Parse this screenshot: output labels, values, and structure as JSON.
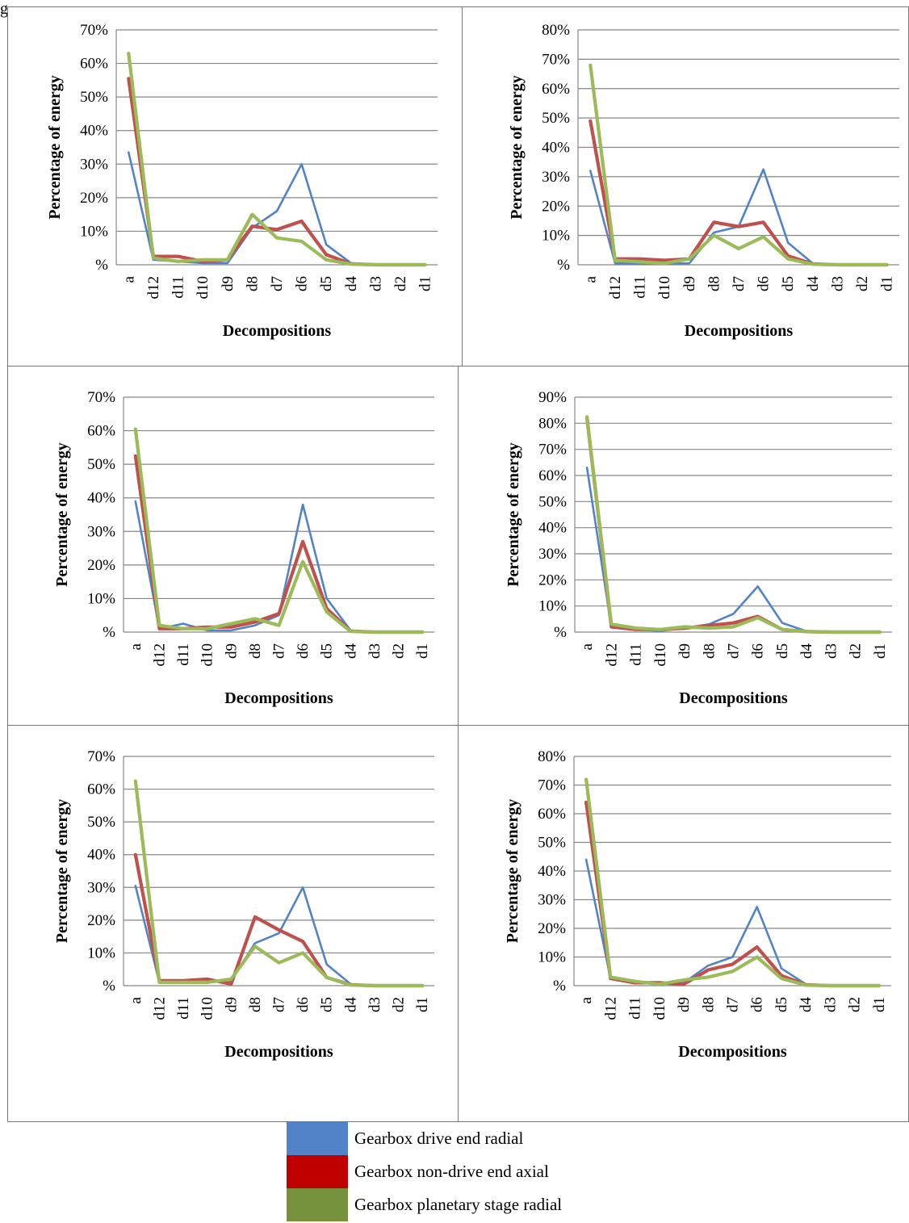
{
  "page": {
    "label": "g"
  },
  "legend": {
    "items": [
      {
        "label": "Gearbox drive end radial",
        "color": "#5283c8"
      },
      {
        "label": "Gearbox non-drive end axial",
        "color": "#c00000"
      },
      {
        "label": "Gearbox planetary stage radial",
        "color": "#76923c"
      }
    ]
  },
  "chart_data": [
    {
      "type": "line",
      "xlabel": "Decompositions",
      "ylabel": "Percentage of energy",
      "categories": [
        "a",
        "d12",
        "d11",
        "d10",
        "d9",
        "d8",
        "d7",
        "d6",
        "d5",
        "d4",
        "d3",
        "d2",
        "d1"
      ],
      "ylim": [
        0,
        70
      ],
      "yticks": [
        "%",
        "10%",
        "20%",
        "30%",
        "40%",
        "50%",
        "60%",
        "70%"
      ],
      "series": [
        {
          "name": "Gearbox drive end radial",
          "color": "#5283c8",
          "values": [
            33.5,
            1.5,
            1.0,
            0.5,
            0.5,
            11.0,
            16.0,
            30.0,
            6.0,
            0.5,
            0,
            0,
            0
          ]
        },
        {
          "name": "Gearbox non-drive end axial",
          "color": "#c0504d",
          "values": [
            55.5,
            2.5,
            2.5,
            1.0,
            1.5,
            11.5,
            10.5,
            13.0,
            3.0,
            0.3,
            0,
            0,
            0
          ]
        },
        {
          "name": "Gearbox planetary stage radial",
          "color": "#9bbb59",
          "values": [
            63.0,
            2.0,
            1.0,
            1.5,
            1.5,
            15.0,
            8.0,
            7.0,
            1.5,
            0.2,
            0,
            0,
            0
          ]
        }
      ]
    },
    {
      "type": "line",
      "xlabel": "Decompositions",
      "ylabel": "Percentage of energy",
      "categories": [
        "a",
        "d12",
        "d11",
        "d10",
        "d9",
        "d8",
        "d7",
        "d6",
        "d5",
        "d4",
        "d3",
        "d2",
        "d1"
      ],
      "ylim": [
        0,
        80
      ],
      "yticks": [
        "%",
        "10%",
        "20%",
        "30%",
        "40%",
        "50%",
        "60%",
        "70%",
        "80%"
      ],
      "series": [
        {
          "name": "Gearbox drive end radial",
          "color": "#5283c8",
          "values": [
            32.0,
            0.5,
            0.5,
            0.5,
            0.5,
            11.0,
            13.0,
            32.5,
            7.5,
            0.5,
            0,
            0,
            0
          ]
        },
        {
          "name": "Gearbox non-drive end axial",
          "color": "#c0504d",
          "values": [
            49.0,
            2.0,
            2.0,
            1.5,
            2.0,
            14.5,
            13.0,
            14.5,
            3.0,
            0.3,
            0,
            0,
            0
          ]
        },
        {
          "name": "Gearbox planetary stage radial",
          "color": "#9bbb59",
          "values": [
            68.0,
            1.5,
            1.0,
            0.5,
            2.0,
            10.0,
            5.5,
            9.5,
            2.0,
            0.2,
            0,
            0,
            0
          ]
        }
      ]
    },
    {
      "type": "line",
      "xlabel": "Decompositions",
      "ylabel": "Percentage of energy",
      "categories": [
        "a",
        "d12",
        "d11",
        "d10",
        "d9",
        "d8",
        "d7",
        "d6",
        "d5",
        "d4",
        "d3",
        "d2",
        "d1"
      ],
      "ylim": [
        0,
        70
      ],
      "yticks": [
        "%",
        "10%",
        "20%",
        "30%",
        "40%",
        "50%",
        "60%",
        "70%"
      ],
      "series": [
        {
          "name": "Gearbox drive end radial",
          "color": "#5283c8",
          "values": [
            39.0,
            1.0,
            2.5,
            0.5,
            0.5,
            2.0,
            5.0,
            38.0,
            10.0,
            0.5,
            0,
            0,
            0
          ]
        },
        {
          "name": "Gearbox non-drive end axial",
          "color": "#c0504d",
          "values": [
            52.5,
            1.0,
            1.0,
            1.5,
            1.5,
            3.0,
            5.5,
            27.0,
            7.0,
            0.3,
            0,
            0,
            0
          ]
        },
        {
          "name": "Gearbox planetary stage radial",
          "color": "#9bbb59",
          "values": [
            60.5,
            2.0,
            1.0,
            1.0,
            2.5,
            4.0,
            2.0,
            21.0,
            6.0,
            0.2,
            0,
            0,
            0
          ]
        }
      ]
    },
    {
      "type": "line",
      "xlabel": "Decompositions",
      "ylabel": "Percentage of energy",
      "categories": [
        "a",
        "d12",
        "d11",
        "d10",
        "d9",
        "d8",
        "d7",
        "d6",
        "d5",
        "d4",
        "d3",
        "d2",
        "d1"
      ],
      "ylim": [
        0,
        90
      ],
      "yticks": [
        "%",
        "10%",
        "20%",
        "30%",
        "40%",
        "50%",
        "60%",
        "70%",
        "80%",
        "90%"
      ],
      "series": [
        {
          "name": "Gearbox drive end radial",
          "color": "#5283c8",
          "values": [
            63.0,
            2.0,
            1.0,
            0.5,
            1.5,
            3.0,
            7.0,
            17.5,
            3.5,
            0.3,
            0,
            0,
            0
          ]
        },
        {
          "name": "Gearbox non-drive end axial",
          "color": "#c0504d",
          "values": [
            82.0,
            2.0,
            1.0,
            1.0,
            1.5,
            2.5,
            3.5,
            6.0,
            1.0,
            0.2,
            0,
            0,
            0
          ]
        },
        {
          "name": "Gearbox planetary stage radial",
          "color": "#9bbb59",
          "values": [
            82.5,
            3.0,
            1.5,
            1.0,
            2.0,
            1.5,
            2.0,
            5.5,
            1.0,
            0.2,
            0,
            0,
            0
          ]
        }
      ]
    },
    {
      "type": "line",
      "xlabel": "Decompositions",
      "ylabel": "Percentage of energy",
      "categories": [
        "a",
        "d12",
        "d11",
        "d10",
        "d9",
        "d8",
        "d7",
        "d6",
        "d5",
        "d4",
        "d3",
        "d2",
        "d1"
      ],
      "ylim": [
        0,
        70
      ],
      "yticks": [
        "%",
        "10%",
        "20%",
        "30%",
        "40%",
        "50%",
        "60%",
        "70%"
      ],
      "series": [
        {
          "name": "Gearbox drive end radial",
          "color": "#5283c8",
          "values": [
            30.5,
            1.0,
            1.0,
            1.0,
            1.5,
            13.0,
            16.0,
            30.0,
            6.5,
            0.5,
            0,
            0,
            0
          ]
        },
        {
          "name": "Gearbox non-drive end axial",
          "color": "#c0504d",
          "values": [
            40.0,
            1.5,
            1.5,
            2.0,
            0.5,
            21.0,
            17.0,
            13.5,
            2.5,
            0.3,
            0,
            0,
            0
          ]
        },
        {
          "name": "Gearbox planetary stage radial",
          "color": "#9bbb59",
          "values": [
            62.5,
            1.0,
            1.0,
            1.0,
            2.0,
            12.0,
            7.0,
            10.0,
            2.5,
            0.2,
            0,
            0,
            0
          ]
        }
      ]
    },
    {
      "type": "line",
      "xlabel": "Decompositions",
      "ylabel": "Percentage of energy",
      "categories": [
        "a",
        "d12",
        "d11",
        "d10",
        "d9",
        "d8",
        "d7",
        "d6",
        "d5",
        "d4",
        "d3",
        "d2",
        "d1"
      ],
      "ylim": [
        0,
        80
      ],
      "yticks": [
        "%",
        "10%",
        "20%",
        "30%",
        "40%",
        "50%",
        "60%",
        "70%",
        "80%"
      ],
      "series": [
        {
          "name": "Gearbox drive end radial",
          "color": "#5283c8",
          "values": [
            44.0,
            2.5,
            1.5,
            0.5,
            1.0,
            7.0,
            10.0,
            27.5,
            6.0,
            0.5,
            0,
            0,
            0
          ]
        },
        {
          "name": "Gearbox non-drive end axial",
          "color": "#c0504d",
          "values": [
            64.0,
            2.5,
            1.0,
            1.0,
            0.5,
            5.5,
            7.5,
            13.5,
            3.5,
            0.3,
            0,
            0,
            0
          ]
        },
        {
          "name": "Gearbox planetary stage radial",
          "color": "#9bbb59",
          "values": [
            72.0,
            3.0,
            1.5,
            0.5,
            2.0,
            3.0,
            5.0,
            10.0,
            2.5,
            0.2,
            0,
            0,
            0
          ]
        }
      ]
    }
  ]
}
